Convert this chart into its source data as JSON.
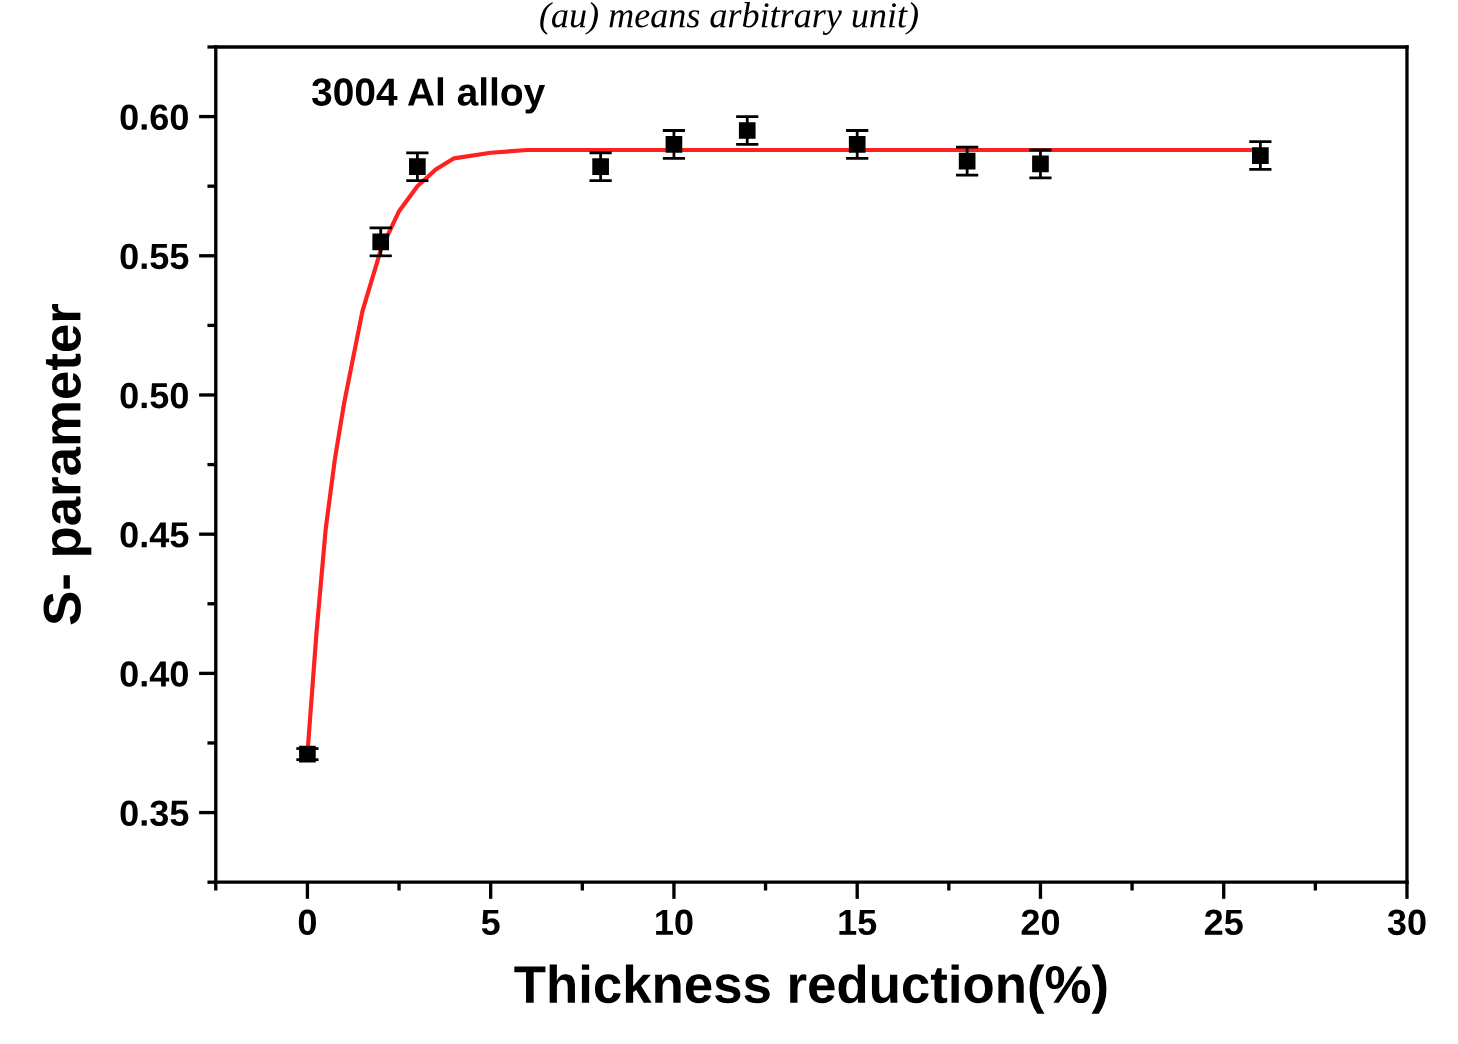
{
  "chart_data": {
    "type": "scatter",
    "xlabel": "Thickness reduction(%)",
    "ylabel": "S- parameter",
    "annotations": [
      "(au) means arbitrary unit)",
      "3004 Al alloy"
    ],
    "xlim": [
      -2.5,
      30
    ],
    "xticks": [
      0,
      5,
      10,
      15,
      20,
      25,
      30
    ],
    "ylim": [
      0.325,
      0.625
    ],
    "yticks": [
      {
        "value": 0.35,
        "label": "0.35"
      },
      {
        "value": 0.4,
        "label": "0.40"
      },
      {
        "value": 0.45,
        "label": "0.45"
      },
      {
        "value": 0.5,
        "label": "0.50"
      },
      {
        "value": 0.55,
        "label": "0.55"
      },
      {
        "value": 0.6,
        "label": "0.60"
      }
    ],
    "grid": false,
    "legend": false,
    "series": [
      {
        "color": "#000000",
        "marker": "square",
        "x": [
          0,
          2,
          3,
          8,
          10,
          12,
          15,
          18,
          20,
          26
        ],
        "values": [
          0.371,
          0.555,
          0.582,
          0.582,
          0.59,
          0.595,
          0.59,
          0.584,
          0.583,
          0.586
        ],
        "errors": [
          0.002,
          0.005,
          0.005,
          0.005,
          0.005,
          0.005,
          0.005,
          0.005,
          0.005,
          0.005
        ]
      },
      {
        "type": "line",
        "color": "#ff2020",
        "line_style": "solid",
        "marker": "none",
        "x": [
          0,
          0.25,
          0.5,
          0.75,
          1,
          1.5,
          2,
          2.5,
          3,
          3.5,
          4,
          5,
          6,
          8,
          26
        ],
        "values": [
          0.371,
          0.415,
          0.452,
          0.477,
          0.497,
          0.53,
          0.552,
          0.566,
          0.575,
          0.581,
          0.585,
          0.587,
          0.588,
          0.588,
          0.588
        ]
      }
    ]
  }
}
